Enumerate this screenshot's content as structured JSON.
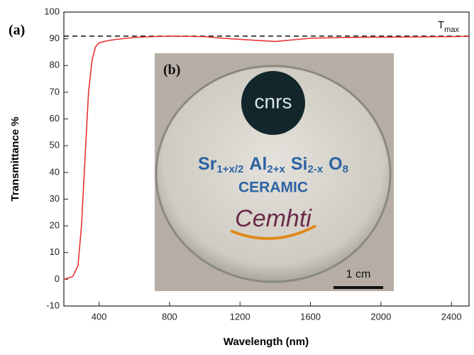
{
  "chart_data": {
    "type": "line",
    "panel_label": "(a)",
    "xlabel": "Wavelength (nm)",
    "ylabel": "Transmittance %",
    "x": [
      200,
      250,
      280,
      300,
      320,
      340,
      360,
      380,
      400,
      450,
      500,
      600,
      700,
      800,
      900,
      1000,
      1100,
      1200,
      1300,
      1400,
      1500,
      1600,
      1800,
      2000,
      2200,
      2400,
      2500
    ],
    "series": [
      {
        "name": "Transmittance",
        "color": "#e8332f",
        "values": [
          0,
          1,
          5,
          20,
          45,
          70,
          82,
          87,
          88.5,
          89.3,
          89.8,
          90.5,
          90.8,
          91,
          90.9,
          90.8,
          90.2,
          89.8,
          89.4,
          89,
          89.6,
          90.2,
          90.5,
          90.6,
          90.7,
          90.8,
          90.9
        ]
      }
    ],
    "xlim": [
      200,
      2500
    ],
    "xticks": [
      400,
      800,
      1200,
      1600,
      2000,
      2400
    ],
    "ylim": [
      -10,
      100
    ],
    "yticks": [
      -10,
      0,
      10,
      20,
      30,
      40,
      50,
      60,
      70,
      80,
      90,
      100
    ],
    "reference_line": {
      "value": 91,
      "text": "T",
      "subscript": "max"
    },
    "inset": {
      "panel_label": "(b)",
      "logo_top": "cnrs",
      "formula": [
        {
          "base": "Sr",
          "sub": "1+x/2"
        },
        {
          "base": "Al",
          "sub": "2+x"
        },
        {
          "base": "Si",
          "sub": "2-x"
        },
        {
          "base": "O",
          "sub": "8"
        }
      ],
      "material": "CERAMIC",
      "logo_bottom": "Cemhti",
      "scale_bar": "1 cm"
    }
  }
}
